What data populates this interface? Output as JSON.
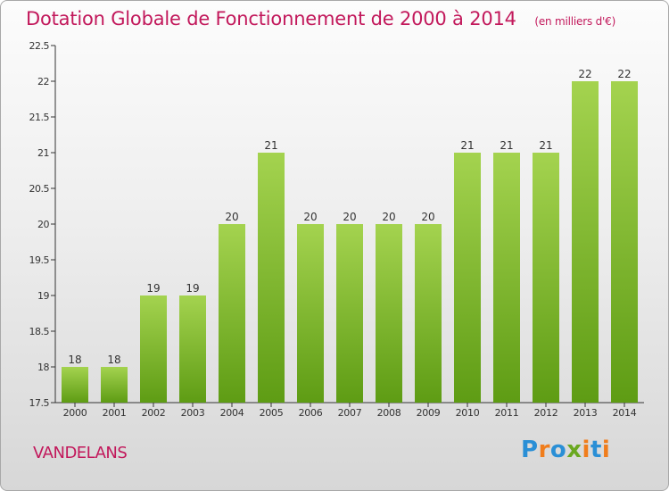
{
  "header": {
    "title": "Dotation Globale de Fonctionnement de 2000 à 2014",
    "subtitle": "(en milliers d'€)"
  },
  "footer": {
    "commune": "VANDELANS",
    "brand": "Proxiti"
  },
  "colors": {
    "title": "#c2185b",
    "bar_top": "#a4d34f",
    "bar_bottom": "#5e9c14",
    "brand_blue": "#2a8fd6",
    "brand_orange": "#f07d1c",
    "brand_green": "#6aa820"
  },
  "chart_data": {
    "type": "bar",
    "title": "Dotation Globale de Fonctionnement de 2000 à 2014",
    "subtitle": "(en milliers d'€)",
    "categories": [
      "2000",
      "2001",
      "2002",
      "2003",
      "2004",
      "2005",
      "2006",
      "2007",
      "2008",
      "2009",
      "2010",
      "2011",
      "2012",
      "2013",
      "2014"
    ],
    "values": [
      18,
      18,
      19,
      19,
      20,
      21,
      20,
      20,
      20,
      20,
      21,
      21,
      21,
      22,
      22
    ],
    "data_labels": [
      "18",
      "18",
      "19",
      "19",
      "20",
      "21",
      "20",
      "20",
      "20",
      "20",
      "21",
      "21",
      "21",
      "22",
      "22"
    ],
    "ylim": [
      17.5,
      22.5
    ],
    "yticks": [
      17.5,
      18,
      18.5,
      19,
      19.5,
      20,
      20.5,
      21,
      21.5,
      22,
      22.5
    ],
    "ytick_labels": [
      "17.5",
      "18",
      "18.5",
      "19",
      "19.5",
      "20",
      "20.5",
      "21",
      "21.5",
      "22",
      "22.5"
    ],
    "xlabel": "",
    "ylabel": "",
    "grid": false,
    "legend": "none"
  }
}
